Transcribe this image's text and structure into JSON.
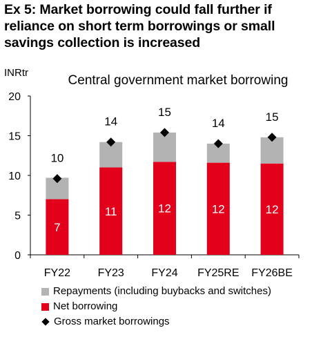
{
  "heading": {
    "line1": "Ex 5: Market borrowing could fall further if",
    "line2": "reliance on short term borrowings or small",
    "line3": "savings collection is increased"
  },
  "chart_data": {
    "type": "bar",
    "stacked": true,
    "title": "Central government market borrowing",
    "ylabel": "INRtr",
    "xlabel": "",
    "ylim": [
      0,
      20
    ],
    "yticks": [
      "0",
      "5",
      "10",
      "15",
      "20"
    ],
    "categories": [
      "FY22",
      "FY23",
      "FY24",
      "FY25RE",
      "FY26BE"
    ],
    "series": [
      {
        "name": "Net borrowing",
        "values": [
          7.0,
          11.0,
          11.7,
          11.6,
          11.5
        ],
        "labels": [
          "7",
          "11",
          "12",
          "12",
          "12"
        ],
        "color": "#e3001b"
      },
      {
        "name": "Repayments (including buybacks and switches)",
        "values": [
          2.7,
          3.2,
          3.7,
          2.4,
          3.3
        ],
        "color": "#b3b3b3"
      }
    ],
    "gross": {
      "name": "Gross market borrowings",
      "values": [
        9.6,
        14.2,
        15.4,
        14.0,
        14.8
      ],
      "labels": [
        "10",
        "14",
        "15",
        "14",
        "15"
      ],
      "color": "#000000"
    },
    "grid": false,
    "legend_position": "bottom"
  }
}
